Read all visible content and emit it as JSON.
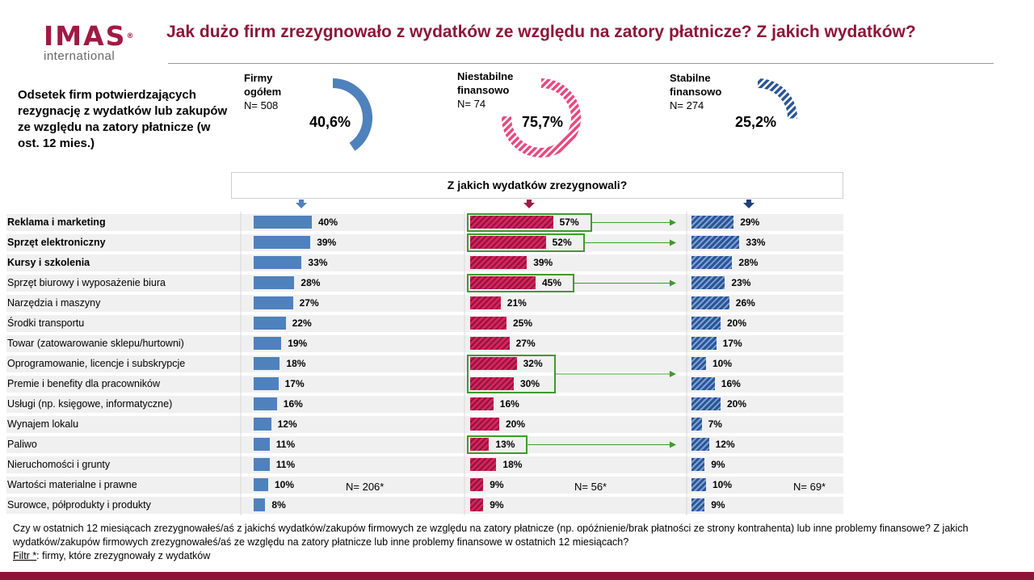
{
  "logo": {
    "main": "IMAS",
    "sub": "international"
  },
  "title": "Jak dużo firm zrezygnowało z wydatków ze względu na zatory płatnicze? Z jakich wydatków?",
  "left_description": "Odsetek firm potwierdzających rezygnację z wydatków lub zakupów ze względu na zatory płatnicze (w ost. 12 mies.)",
  "groups": [
    {
      "name": "Firmy ogółem",
      "n": "N= 508",
      "value_label": "40,6%",
      "value": 40.6,
      "color": "#4f81bd"
    },
    {
      "name": "Niestabilne finansowo",
      "n": "N= 74",
      "value_label": "75,7%",
      "value": 75.7,
      "color": "#d6235f"
    },
    {
      "name": "Stabilne finansowo",
      "n": "N= 274",
      "value_label": "25,2%",
      "value": 25.2,
      "color": "#2b5596"
    }
  ],
  "subtitle": "Z jakich wydatków zrezygnowali?",
  "chart_data": {
    "type": "bar",
    "title": "Z jakich wydatków zrezygnowali?",
    "categories": [
      "Reklama i marketing",
      "Sprzęt elektroniczny",
      "Kursy i szkolenia",
      "Sprzęt biurowy i wyposażenie biura",
      "Narzędzia i maszyny",
      "Środki transportu",
      "Towar (zatowarowanie sklepu/hurtowni)",
      "Oprogramowanie, licencje i subskrypcje",
      "Premie i benefity dla pracowników",
      "Usługi (np. księgowe, informatyczne)",
      "Wynajem lokalu",
      "Paliwo",
      "Nieruchomości i grunty",
      "Wartości materialne i prawne",
      "Surowce, półprodukty i produkty"
    ],
    "bold_categories": [
      0,
      1,
      2
    ],
    "series": [
      {
        "name": "Firmy ogółem",
        "n_note": "N= 206*",
        "values": [
          40,
          39,
          33,
          28,
          27,
          22,
          19,
          18,
          17,
          16,
          12,
          11,
          11,
          10,
          8
        ]
      },
      {
        "name": "Niestabilne finansowo",
        "n_note": "N= 56*",
        "values": [
          57,
          52,
          39,
          45,
          21,
          25,
          27,
          32,
          30,
          16,
          20,
          13,
          18,
          9,
          9
        ]
      },
      {
        "name": "Stabilne finansowo",
        "n_note": "N= 69*",
        "values": [
          29,
          33,
          28,
          23,
          26,
          20,
          17,
          10,
          16,
          20,
          7,
          12,
          9,
          10,
          9
        ]
      }
    ],
    "value_suffix": "%",
    "highlight_groups": [
      [
        0
      ],
      [
        1
      ],
      [
        3
      ],
      [
        7,
        8
      ],
      [
        11
      ]
    ]
  },
  "footnote": {
    "question": "Czy w ostatnich 12 miesiącach zrezygnowałeś/aś z jakichś wydatków/zakupów  firmowych ze względu na zatory płatnicze (np. opóźnienie/brak płatności ze strony kontrahenta)  lub inne problemy finansowe?  Z jakich wydatków/zakupów  firmowych  zrezygnowałeś/aś ze względu na zatory płatnicze lub inne problemy finansowe w ostatnich 12 miesiącach?",
    "filter_label": "Filtr *",
    "filter_text": ": firmy, które zrezygnowały z wydatków"
  }
}
